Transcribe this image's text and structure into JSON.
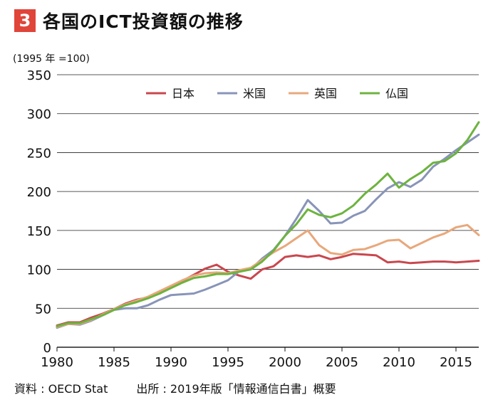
{
  "figure": {
    "number": "3",
    "title": "各国のICT投資額の推移",
    "unit_note": "(1995 年 =100)",
    "source_data": "資料 : OECD Stat",
    "source_pub": "出所 : 2019年版「情報通信白書」概要"
  },
  "colors": {
    "badge": "#e0453a",
    "grid": "#222222"
  },
  "chart_data": {
    "type": "line",
    "title": "各国のICT投資額の推移",
    "xlabel": "",
    "ylabel": "(1995 年 =100)",
    "xlim": [
      1980,
      2017
    ],
    "ylim": [
      0,
      350
    ],
    "x_ticks": [
      1980,
      1985,
      1990,
      1995,
      2000,
      2005,
      2010,
      2015
    ],
    "y_ticks": [
      0,
      50,
      100,
      150,
      200,
      250,
      300,
      350
    ],
    "grid": "horizontal",
    "legend": "top-center",
    "x": [
      1980,
      1981,
      1982,
      1983,
      1984,
      1985,
      1986,
      1987,
      1988,
      1989,
      1990,
      1991,
      1992,
      1993,
      1994,
      1995,
      1996,
      1997,
      1998,
      1999,
      2000,
      2001,
      2002,
      2003,
      2004,
      2005,
      2006,
      2007,
      2008,
      2009,
      2010,
      2011,
      2012,
      2013,
      2014,
      2015,
      2016,
      2017
    ],
    "series": [
      {
        "name": "日本",
        "color": "#c9474e",
        "values": [
          28,
          32,
          32,
          38,
          43,
          49,
          56,
          61,
          64,
          69,
          77,
          85,
          93,
          101,
          106,
          97,
          92,
          88,
          100,
          104,
          116,
          118,
          116,
          118,
          113,
          116,
          120,
          119,
          118,
          109,
          110,
          108,
          109,
          110,
          110,
          109,
          110,
          111
        ]
      },
      {
        "name": "米国",
        "color": "#8894b8",
        "values": [
          25,
          30,
          29,
          34,
          41,
          48,
          50,
          50,
          54,
          61,
          67,
          68,
          69,
          74,
          80,
          86,
          98,
          100,
          114,
          125,
          143,
          165,
          189,
          175,
          159,
          160,
          169,
          175,
          190,
          204,
          212,
          206,
          215,
          232,
          242,
          253,
          263,
          273
        ]
      },
      {
        "name": "英国",
        "color": "#e8a87c",
        "values": [
          26,
          30,
          30,
          35,
          42,
          49,
          55,
          60,
          65,
          72,
          79,
          86,
          92,
          95,
          96,
          95,
          99,
          102,
          112,
          122,
          130,
          140,
          150,
          131,
          121,
          119,
          125,
          126,
          131,
          137,
          138,
          127,
          134,
          141,
          146,
          154,
          157,
          144
        ]
      },
      {
        "name": "仏国",
        "color": "#6db33f",
        "values": [
          27,
          31,
          31,
          36,
          41,
          48,
          54,
          58,
          63,
          69,
          76,
          83,
          89,
          91,
          94,
          94,
          97,
          100,
          110,
          124,
          143,
          158,
          177,
          170,
          167,
          172,
          182,
          197,
          209,
          223,
          205,
          216,
          225,
          237,
          239,
          249,
          266,
          289
        ]
      }
    ]
  }
}
